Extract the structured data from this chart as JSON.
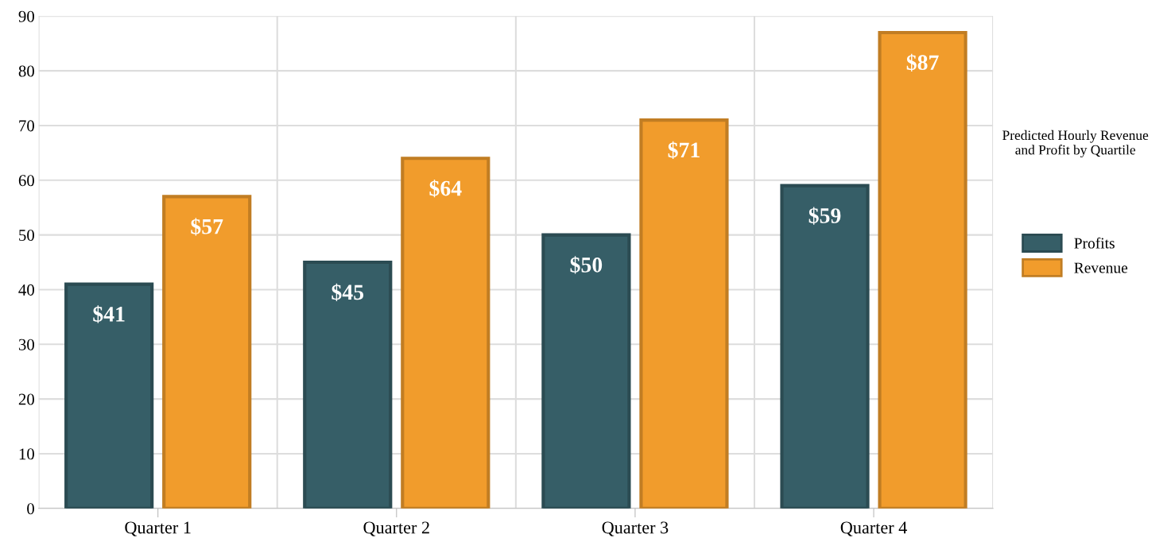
{
  "chart_data": {
    "type": "bar",
    "categories": [
      "Quarter 1",
      "Quarter 2",
      "Quarter 3",
      "Quarter 4"
    ],
    "series": [
      {
        "name": "Profits",
        "color": "#365e67",
        "values": [
          41,
          45,
          50,
          59
        ],
        "value_labels": [
          "$41",
          "$45",
          "$50",
          "$59"
        ]
      },
      {
        "name": "Revenue",
        "color": "#f19c2c",
        "values": [
          57,
          64,
          71,
          87
        ],
        "value_labels": [
          "$57",
          "$64",
          "$71",
          "$87"
        ]
      }
    ],
    "legend_title": "Predicted Hourly Revenue\nand Profit by Quartile",
    "legend": "right",
    "ylim": [
      0,
      90
    ],
    "yticks": [
      0,
      10,
      20,
      30,
      40,
      50,
      60,
      70,
      80,
      90
    ],
    "grid": true
  }
}
